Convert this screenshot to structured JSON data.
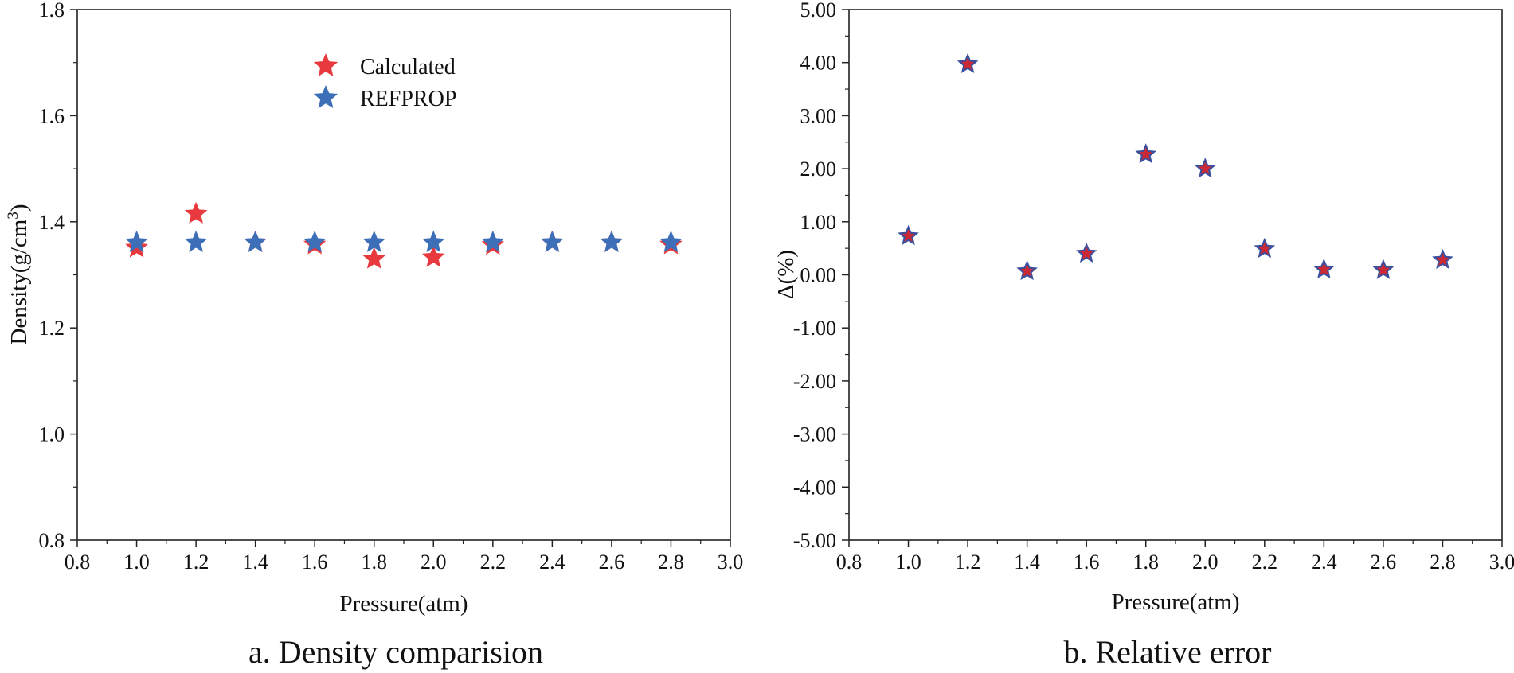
{
  "chart_data": [
    {
      "type": "scatter",
      "caption": "a. Density comparision",
      "xlabel": "Pressure(atm)",
      "ylabel_main": "Density(g/cm",
      "ylabel_sup": "3",
      "ylabel_end": ")",
      "xlim": [
        0.8,
        3.0
      ],
      "ylim": [
        0.8,
        1.8
      ],
      "xticks": [
        "0.8",
        "1.0",
        "1.2",
        "1.4",
        "1.6",
        "1.8",
        "2.0",
        "2.2",
        "2.4",
        "2.6",
        "2.8",
        "3.0"
      ],
      "xtick_values": [
        0.8,
        1.0,
        1.2,
        1.4,
        1.6,
        1.8,
        2.0,
        2.2,
        2.4,
        2.6,
        2.8,
        3.0
      ],
      "yticks": [
        "0.8",
        "1.0",
        "1.2",
        "1.4",
        "1.6",
        "1.8"
      ],
      "ytick_values": [
        0.8,
        1.0,
        1.2,
        1.4,
        1.6,
        1.8
      ],
      "legend": {
        "placement": "top-center"
      },
      "series": [
        {
          "name": "Calculated",
          "color": "#e8393f",
          "marker": "star",
          "x": [
            1.0,
            1.2,
            1.4,
            1.6,
            1.8,
            2.0,
            2.2,
            2.4,
            2.6,
            2.8
          ],
          "y": [
            1.351,
            1.415,
            1.361,
            1.357,
            1.33,
            1.333,
            1.356,
            1.361,
            1.361,
            1.357
          ]
        },
        {
          "name": "REFPROP",
          "color": "#3c6fb8",
          "marker": "star",
          "x": [
            1.0,
            1.2,
            1.4,
            1.6,
            1.8,
            2.0,
            2.2,
            2.4,
            2.6,
            2.8
          ],
          "y": [
            1.361,
            1.361,
            1.361,
            1.361,
            1.361,
            1.361,
            1.361,
            1.361,
            1.361,
            1.361
          ]
        }
      ]
    },
    {
      "type": "scatter",
      "caption": "b. Relative error",
      "xlabel": "Pressure(atm)",
      "ylabel": "Δ(%)",
      "xlim": [
        0.8,
        3.0
      ],
      "ylim": [
        -5.0,
        5.0
      ],
      "xticks": [
        "0.8",
        "1.0",
        "1.2",
        "1.4",
        "1.6",
        "1.8",
        "2.0",
        "2.2",
        "2.4",
        "2.6",
        "2.8",
        "3.0"
      ],
      "xtick_values": [
        0.8,
        1.0,
        1.2,
        1.4,
        1.6,
        1.8,
        2.0,
        2.2,
        2.4,
        2.6,
        2.8,
        3.0
      ],
      "yticks": [
        "-5.00",
        "-4.00",
        "-3.00",
        "-2.00",
        "-1.00",
        "0.00",
        "1.00",
        "2.00",
        "3.00",
        "4.00",
        "5.00"
      ],
      "ytick_values": [
        -5,
        -4,
        -3,
        -2,
        -1,
        0,
        1,
        2,
        3,
        4,
        5
      ],
      "series": [
        {
          "color": "#cc2936",
          "marker": "star",
          "size_factor": 0.82,
          "x": [
            1.0,
            1.2,
            1.4,
            1.6,
            1.8,
            2.0,
            2.2,
            2.4,
            2.6,
            2.8
          ],
          "y": [
            0.73,
            3.97,
            0.07,
            0.4,
            2.27,
            2.0,
            0.49,
            0.1,
            0.09,
            0.28
          ]
        },
        {
          "color": "#3a4f9e",
          "marker": "star",
          "size_factor": 1.0,
          "hollow_center": true,
          "x": [
            1.0,
            1.2,
            1.4,
            1.6,
            1.8,
            2.0,
            2.2,
            2.4,
            2.6,
            2.8
          ],
          "y": [
            0.73,
            3.97,
            0.07,
            0.4,
            2.27,
            2.0,
            0.49,
            0.1,
            0.09,
            0.28
          ]
        }
      ]
    }
  ]
}
